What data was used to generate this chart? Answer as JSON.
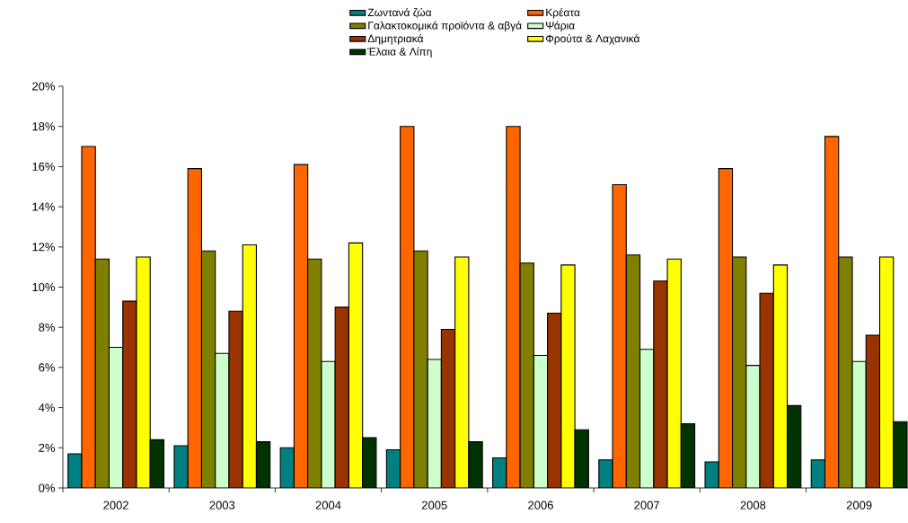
{
  "chart_data": {
    "type": "bar",
    "categories": [
      "2002",
      "2003",
      "2004",
      "2005",
      "2006",
      "2007",
      "2008",
      "2009"
    ],
    "series": [
      {
        "name": "Ζωντανά ζώα",
        "color": "#008080",
        "values": [
          1.7,
          2.1,
          2.0,
          1.9,
          1.5,
          1.4,
          1.3,
          1.4
        ]
      },
      {
        "name": "Κρέατα",
        "color": "#ff6600",
        "values": [
          17.0,
          15.9,
          16.1,
          18.0,
          18.0,
          15.1,
          15.9,
          17.5
        ]
      },
      {
        "name": "Γαλακτοκομικά προϊόντα & αβγά",
        "color": "#808000",
        "values": [
          11.4,
          11.8,
          11.4,
          11.8,
          11.2,
          11.6,
          11.5,
          11.5
        ]
      },
      {
        "name": "Ψάρια",
        "color": "#ccffcc",
        "values": [
          7.0,
          6.7,
          6.3,
          6.4,
          6.6,
          6.9,
          6.1,
          6.3
        ]
      },
      {
        "name": "Δημητριακά",
        "color": "#993300",
        "values": [
          9.3,
          8.8,
          9.0,
          7.9,
          8.7,
          10.3,
          9.7,
          7.6
        ]
      },
      {
        "name": "Φρούτα & Λαχανικά",
        "color": "#ffff00",
        "values": [
          11.5,
          12.1,
          12.2,
          11.5,
          11.1,
          11.4,
          11.1,
          11.5
        ]
      },
      {
        "name": "Έλαια & Λίπη",
        "color": "#003300",
        "values": [
          2.4,
          2.3,
          2.5,
          2.3,
          2.9,
          3.2,
          4.1,
          3.3
        ]
      }
    ],
    "ylim": [
      0,
      20
    ],
    "yticks": [
      {
        "value": 0,
        "label": "0%"
      },
      {
        "value": 2,
        "label": "2%"
      },
      {
        "value": 4,
        "label": "4%"
      },
      {
        "value": 6,
        "label": "6%"
      },
      {
        "value": 8,
        "label": "8%"
      },
      {
        "value": 10,
        "label": "10%"
      },
      {
        "value": 12,
        "label": "12%"
      },
      {
        "value": 14,
        "label": "14%"
      },
      {
        "value": 16,
        "label": "16%"
      },
      {
        "value": 18,
        "label": "18%"
      },
      {
        "value": 20,
        "label": "20%"
      }
    ],
    "legend": "top"
  }
}
